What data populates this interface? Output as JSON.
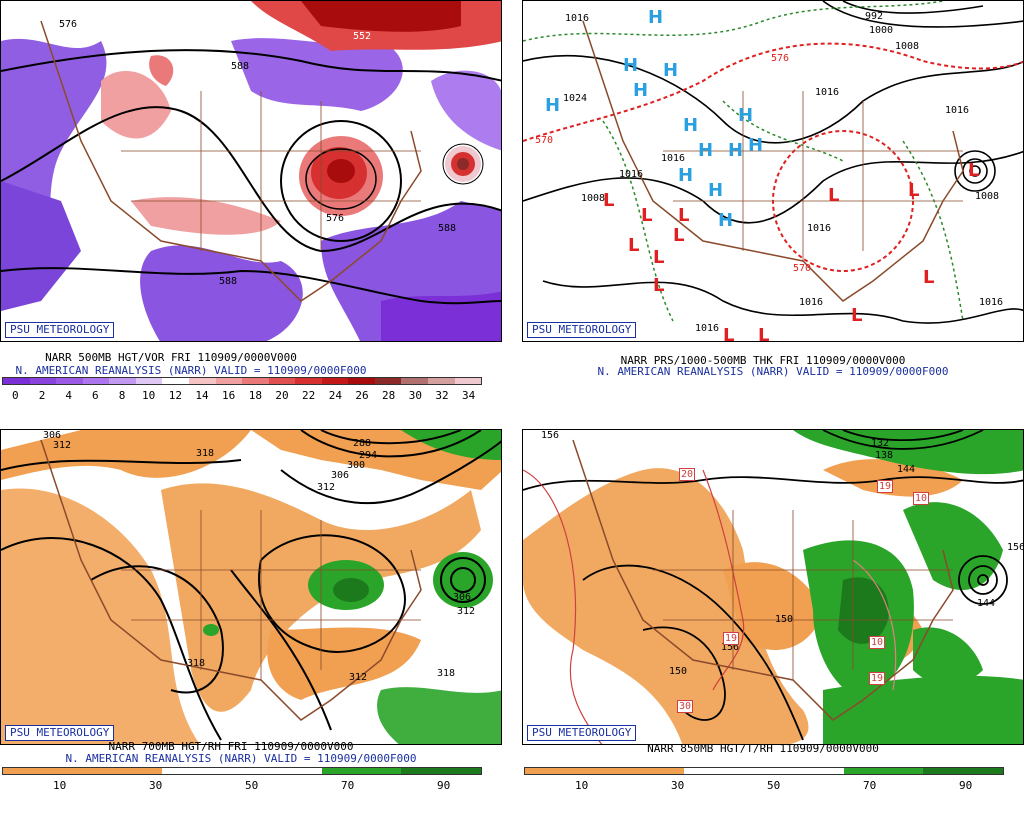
{
  "branding": "PSU METEOROLOGY",
  "panels": [
    {
      "id": "tl",
      "caption_line1": "NARR 500MB HGT/VOR FRI 110909/0000V000",
      "caption_line2": "N. AMERICAN REANALYSIS (NARR) VALID = 110909/0000F000",
      "scale_labels": [
        "0",
        "2",
        "4",
        "6",
        "8",
        "10",
        "12",
        "14",
        "16",
        "18",
        "20",
        "22",
        "24",
        "26",
        "28",
        "30",
        "32",
        "34"
      ],
      "scale_colors": [
        "#7b2fd6",
        "#8a44de",
        "#9a5ae6",
        "#ad76ee",
        "#c39af2",
        "#dfc8f6",
        "#ffffff",
        "#f6c4c4",
        "#f0a0a0",
        "#ea7a7a",
        "#e05050",
        "#d63030",
        "#c41818",
        "#a80c0c",
        "#8c2a2a",
        "#b07070",
        "#d4a0a0",
        "#f0c8d0"
      ],
      "contour_labels": [
        "576",
        "552",
        "588",
        "576",
        "588",
        "576",
        "588"
      ]
    },
    {
      "id": "tr",
      "caption_line1": "NARR PRS/1000-500MB THK FRI 110909/0000V000",
      "caption_line2": "N. AMERICAN REANALYSIS (NARR) VALID = 110909/0000F000",
      "contour_labels": [
        "1016",
        "1024",
        "992",
        "1000",
        "1008",
        "1016",
        "1016",
        "1016",
        "1016",
        "1016",
        "1008",
        "1016",
        "1016",
        "1016",
        "1016",
        "570",
        "576",
        "570",
        "1008"
      ],
      "high_symbol": "H",
      "low_symbol": "L"
    },
    {
      "id": "bl",
      "caption_line1": "NARR 700MB HGT/RH FRI 110909/0000V000",
      "caption_line2": "N. AMERICAN REANALYSIS (NARR) VALID = 110909/0000F000",
      "scale_labels": [
        "10",
        "30",
        "50",
        "70",
        "90"
      ],
      "scale_colors": [
        "#f0a050",
        "#f0a050",
        "#ffffff",
        "#ffffff",
        "#2aa52a",
        "#1c7a1c"
      ],
      "contour_labels": [
        "306",
        "312",
        "318",
        "288",
        "294",
        "300",
        "306",
        "312",
        "318",
        "312",
        "306",
        "312",
        "318",
        "318"
      ]
    },
    {
      "id": "br",
      "caption_line1": "NARR 850MB HGT/T/RH 110909/0000V000",
      "scale_labels": [
        "10",
        "30",
        "50",
        "70",
        "90"
      ],
      "scale_colors": [
        "#f0a050",
        "#f0a050",
        "#ffffff",
        "#ffffff",
        "#2aa52a",
        "#1c7a1c"
      ],
      "contour_labels": [
        "156",
        "132",
        "138",
        "144",
        "150",
        "156",
        "144",
        "156",
        "156",
        "150",
        "20",
        "19",
        "10",
        "19",
        "10",
        "30",
        "10",
        "19"
      ]
    }
  ]
}
